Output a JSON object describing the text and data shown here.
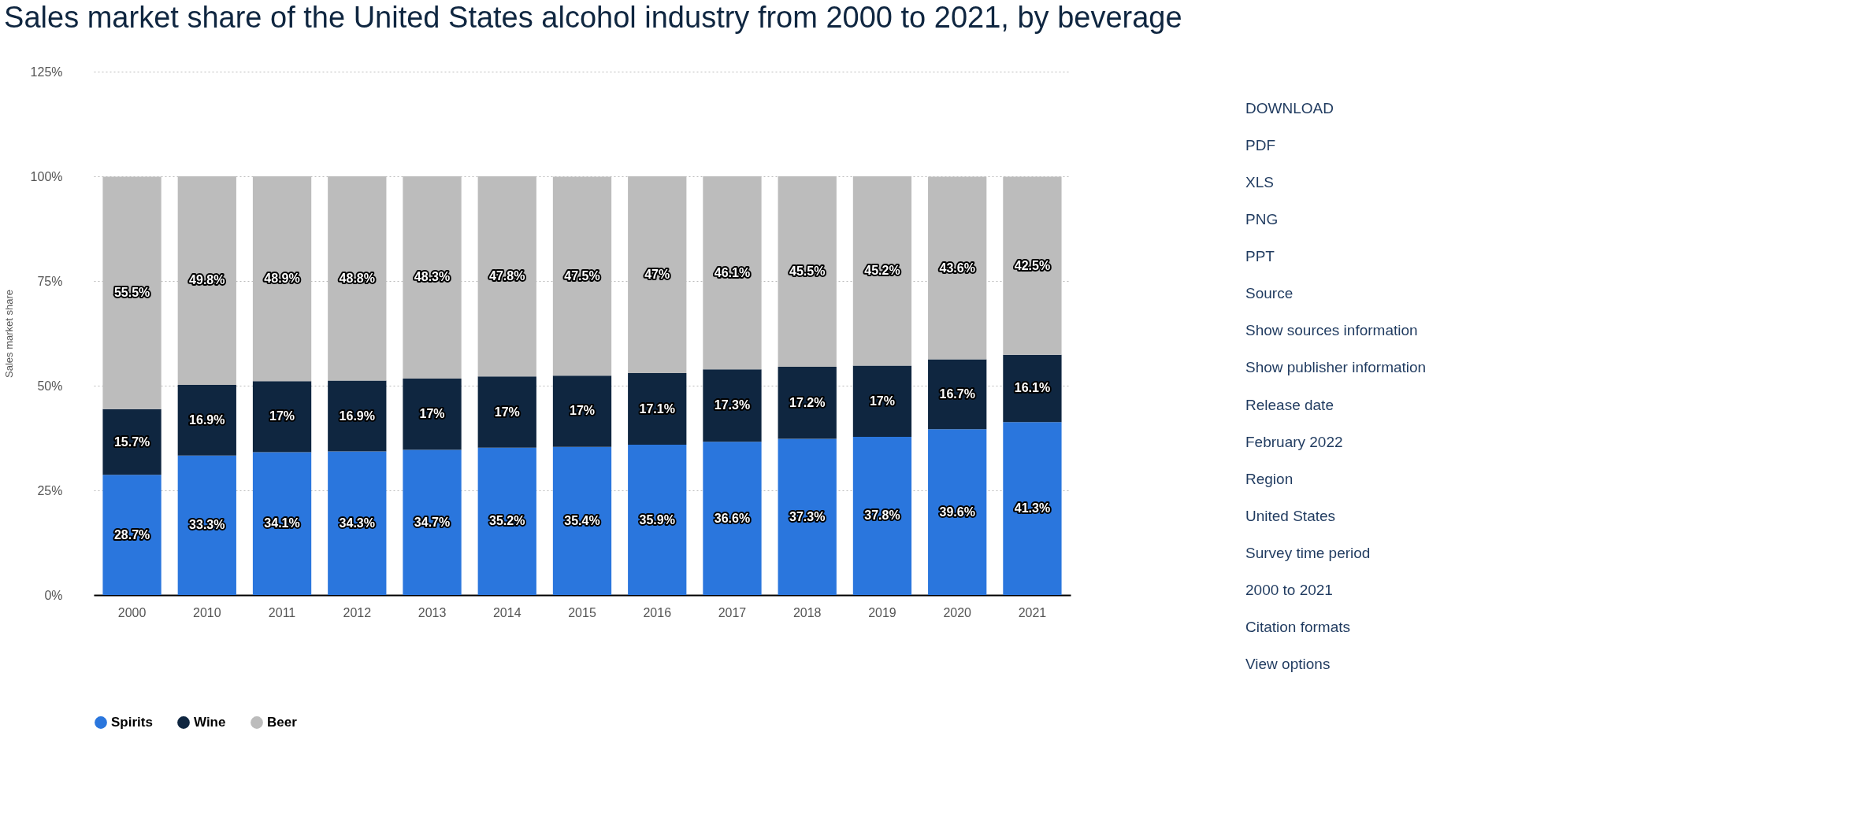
{
  "chart_data": [
    {
      "type": "bar",
      "stacked": true,
      "title": "Sales market share of the United States alcohol industry from 2000 to 2021, by beverage",
      "ylabel": "Sales market share",
      "categories": [
        "2000",
        "2010",
        "2011",
        "2012",
        "2013",
        "2014",
        "2015",
        "2016",
        "2017",
        "2018",
        "2019",
        "2020",
        "2021"
      ],
      "series": [
        {
          "name": "Spirits",
          "color": "#2a76dd",
          "values": [
            28.7,
            33.3,
            34.1,
            34.3,
            34.7,
            35.2,
            35.4,
            35.9,
            36.6,
            37.3,
            37.8,
            39.6,
            41.3
          ],
          "value_labels": [
            "28.7%",
            "33.3%",
            "34.1%",
            "34.3%",
            "34.7%",
            "35.2%",
            "35.4%",
            "35.9%",
            "36.6%",
            "37.3%",
            "37.8%",
            "39.6%",
            "41.3%"
          ]
        },
        {
          "name": "Wine",
          "color": "#0f2640",
          "values": [
            15.7,
            16.9,
            17,
            16.9,
            17,
            17,
            17,
            17.1,
            17.3,
            17.2,
            17,
            16.7,
            16.1
          ],
          "value_labels": [
            "15.7%",
            "16.9%",
            "17%",
            "16.9%",
            "17%",
            "17%",
            "17%",
            "17.1%",
            "17.3%",
            "17.2%",
            "17%",
            "16.7%",
            "16.1%"
          ]
        },
        {
          "name": "Beer",
          "color": "#bcbcbc",
          "values": [
            55.5,
            49.8,
            48.9,
            48.8,
            48.3,
            47.8,
            47.5,
            47,
            46.1,
            45.5,
            45.2,
            43.6,
            42.5
          ],
          "value_labels": [
            "55.5%",
            "49.8%",
            "48.9%",
            "48.8%",
            "48.3%",
            "47.8%",
            "47.5%",
            "47%",
            "46.1%",
            "45.5%",
            "45.2%",
            "43.6%",
            "42.5%"
          ]
        }
      ],
      "ylim": [
        0,
        125
      ],
      "yticks": [
        {
          "value": 0,
          "label": "0%"
        },
        {
          "value": 25,
          "label": "25%"
        },
        {
          "value": 50,
          "label": "50%"
        },
        {
          "value": 75,
          "label": "75%"
        },
        {
          "value": 100,
          "label": "100%"
        },
        {
          "value": 125,
          "label": "125%"
        }
      ],
      "grid": "y",
      "legend": "bottom"
    },
    {
      "type": "other",
      "annotations": [
        "DOWNLOAD",
        "PDF",
        "XLS",
        "PNG",
        "PPT",
        "Source",
        "Show sources information",
        "Show publisher information",
        "Release date",
        "February 2022",
        "Region",
        "United States",
        "Survey time period",
        "2000 to 2021",
        "Citation formats",
        "View options"
      ]
    }
  ]
}
